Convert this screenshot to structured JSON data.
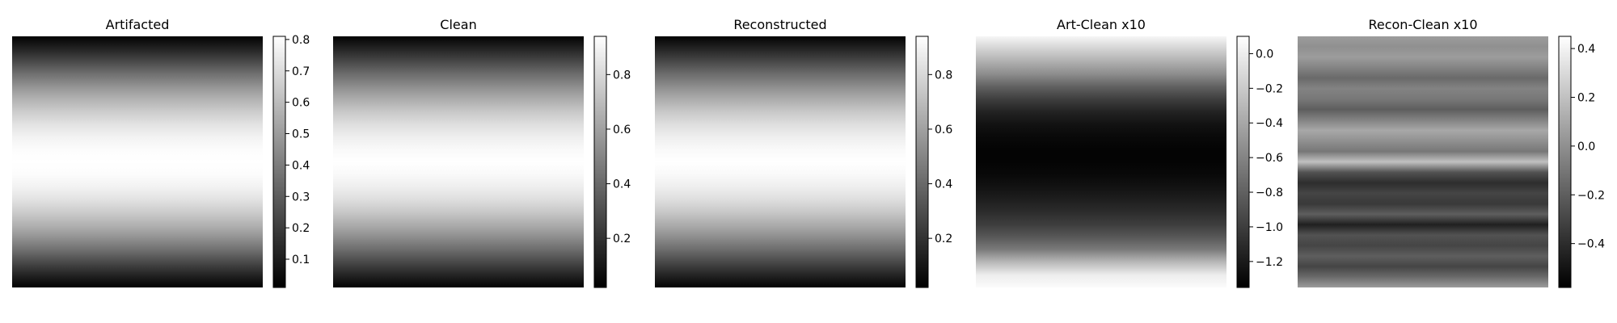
{
  "figure": {
    "colormap": "gray",
    "panels": [
      {
        "title": "Artifacted"
      },
      {
        "title": "Clean"
      },
      {
        "title": "Reconstructed"
      },
      {
        "title": "Art-Clean x10"
      },
      {
        "title": "Recon-Clean x10"
      }
    ]
  },
  "chart_data": [
    {
      "type": "heatmap",
      "title": "Artifacted",
      "colormap": "gray",
      "axes": "off",
      "vmin": 0.01,
      "vmax": 0.81,
      "colorbar_ticks": [
        0.1,
        0.2,
        0.3,
        0.4,
        0.5,
        0.6,
        0.7,
        0.8
      ],
      "colorbar_tick_labels": [
        "0.1",
        "0.2",
        "0.3",
        "0.4",
        "0.5",
        "0.6",
        "0.7",
        "0.8"
      ],
      "row_profile": [
        0.02,
        0.12,
        0.24,
        0.36,
        0.47,
        0.57,
        0.65,
        0.72,
        0.77,
        0.8,
        0.81,
        0.8,
        0.77,
        0.72,
        0.65,
        0.57,
        0.47,
        0.36,
        0.24,
        0.12,
        0.02
      ]
    },
    {
      "type": "heatmap",
      "title": "Clean",
      "colormap": "gray",
      "axes": "off",
      "vmin": 0.02,
      "vmax": 0.94,
      "colorbar_ticks": [
        0.2,
        0.4,
        0.6,
        0.8
      ],
      "colorbar_tick_labels": [
        "0.2",
        "0.4",
        "0.6",
        "0.8"
      ],
      "row_profile": [
        0.03,
        0.15,
        0.28,
        0.41,
        0.53,
        0.64,
        0.74,
        0.82,
        0.88,
        0.92,
        0.94,
        0.92,
        0.88,
        0.82,
        0.74,
        0.64,
        0.53,
        0.41,
        0.28,
        0.15,
        0.03
      ]
    },
    {
      "type": "heatmap",
      "title": "Reconstructed",
      "colormap": "gray",
      "axes": "off",
      "vmin": 0.02,
      "vmax": 0.94,
      "colorbar_ticks": [
        0.2,
        0.4,
        0.6,
        0.8
      ],
      "colorbar_tick_labels": [
        "0.2",
        "0.4",
        "0.6",
        "0.8"
      ],
      "row_profile": [
        0.03,
        0.15,
        0.28,
        0.41,
        0.53,
        0.64,
        0.74,
        0.82,
        0.88,
        0.92,
        0.94,
        0.92,
        0.88,
        0.82,
        0.74,
        0.64,
        0.53,
        0.41,
        0.28,
        0.15,
        0.03
      ]
    },
    {
      "type": "heatmap",
      "title": "Art-Clean x10",
      "colormap": "gray",
      "axes": "off",
      "vmin": -1.35,
      "vmax": 0.1,
      "colorbar_ticks": [
        0.0,
        -0.2,
        -0.4,
        -0.6,
        -0.8,
        -1.0,
        -1.2
      ],
      "colorbar_tick_labels": [
        "0.0",
        "−0.2",
        "−0.4",
        "−0.6",
        "−0.8",
        "−1.0",
        "−1.2"
      ],
      "row_profile": [
        0.05,
        -0.15,
        -0.35,
        -0.55,
        -0.8,
        -1.0,
        -1.15,
        -1.25,
        -1.3,
        -1.33,
        -1.33,
        -1.3,
        -1.25,
        -1.18,
        -1.1,
        -1.0,
        -0.85,
        -0.65,
        -0.3,
        0.0,
        0.08
      ]
    },
    {
      "type": "heatmap",
      "title": "Recon-Clean x10",
      "colormap": "gray",
      "axes": "off",
      "vmin": -0.58,
      "vmax": 0.45,
      "colorbar_ticks": [
        0.4,
        0.2,
        0.0,
        -0.2,
        -0.4
      ],
      "colorbar_tick_labels": [
        "0.4",
        "0.2",
        "0.0",
        "−0.2",
        "−0.4"
      ],
      "row_profile": [
        0.05,
        0.0,
        0.05,
        -0.05,
        -0.15,
        -0.05,
        -0.1,
        -0.2,
        -0.05,
        0.1,
        0.0,
        -0.1,
        0.2,
        -0.25,
        -0.4,
        -0.3,
        -0.35,
        -0.2,
        -0.45,
        -0.25,
        -0.3,
        -0.2,
        -0.3,
        -0.15,
        0.05
      ]
    }
  ]
}
